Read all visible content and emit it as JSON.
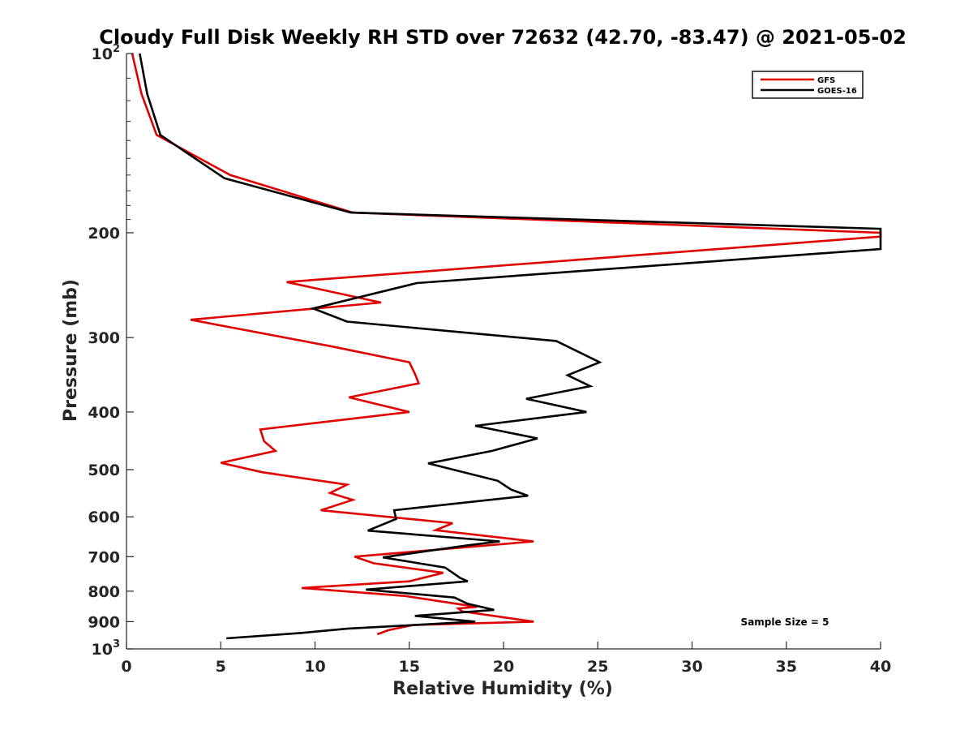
{
  "chart_data": {
    "type": "line",
    "title": "Cloudy Full Disk Weekly RH STD over 72632 (42.70, -83.47) @ 2021-05-02",
    "xlabel": "Relative Humidity (%)",
    "ylabel": "Pressure (mb)",
    "xlim": [
      0,
      40
    ],
    "ylim": [
      100,
      1000
    ],
    "y_scale": "log",
    "y_reversed": true,
    "grid": false,
    "legend_position": "top-right",
    "x_ticks": [
      0,
      5,
      10,
      15,
      20,
      25,
      30,
      35,
      40
    ],
    "x_tick_labels": [
      "0",
      "5",
      "10",
      "15",
      "20",
      "25",
      "30",
      "35",
      "40"
    ],
    "y_ticks": [
      {
        "value": 100,
        "base": "10",
        "sup": "2"
      },
      {
        "value": 200,
        "base": "200",
        "sup": ""
      },
      {
        "value": 300,
        "base": "300",
        "sup": ""
      },
      {
        "value": 400,
        "base": "400",
        "sup": ""
      },
      {
        "value": 500,
        "base": "500",
        "sup": ""
      },
      {
        "value": 600,
        "base": "600",
        "sup": ""
      },
      {
        "value": 700,
        "base": "700",
        "sup": ""
      },
      {
        "value": 800,
        "base": "800",
        "sup": ""
      },
      {
        "value": 900,
        "base": "900",
        "sup": ""
      },
      {
        "value": 1000,
        "base": "10",
        "sup": "3"
      }
    ],
    "annotation": "Sample Size = 5",
    "series": [
      {
        "name": "GFS",
        "color": "#e00000",
        "points": [
          [
            0.3,
            100
          ],
          [
            0.8,
            117
          ],
          [
            1.6,
            137
          ],
          [
            5.5,
            160
          ],
          [
            12,
            185
          ],
          [
            40,
            200
          ],
          [
            40,
            203
          ],
          [
            8.5,
            242
          ],
          [
            13.5,
            262
          ],
          [
            3.4,
            280
          ],
          [
            10.8,
            310
          ],
          [
            15.0,
            330
          ],
          [
            15.3,
            345
          ],
          [
            15.5,
            358
          ],
          [
            11.8,
            378
          ],
          [
            15.0,
            400
          ],
          [
            7.1,
            428
          ],
          [
            7.3,
            448
          ],
          [
            7.9,
            465
          ],
          [
            5.0,
            487
          ],
          [
            7.2,
            505
          ],
          [
            11.7,
            530
          ],
          [
            10.8,
            547
          ],
          [
            12.0,
            562
          ],
          [
            10.3,
            585
          ],
          [
            17.3,
            615
          ],
          [
            16.4,
            632
          ],
          [
            21.6,
            660
          ],
          [
            12.1,
            700
          ],
          [
            13.1,
            718
          ],
          [
            16.8,
            745
          ],
          [
            15.0,
            770
          ],
          [
            9.3,
            790
          ],
          [
            14.8,
            815
          ],
          [
            17.3,
            838
          ],
          [
            18.6,
            850
          ],
          [
            17.6,
            855
          ],
          [
            17.8,
            865
          ],
          [
            21.6,
            900
          ],
          [
            15.2,
            912
          ],
          [
            13.9,
            930
          ],
          [
            13.3,
            945
          ]
        ]
      },
      {
        "name": "GOES-16",
        "color": "#000000",
        "points": [
          [
            0.7,
            100
          ],
          [
            1.1,
            117
          ],
          [
            1.8,
            137
          ],
          [
            5.2,
            162
          ],
          [
            11.9,
            185
          ],
          [
            40,
            197
          ],
          [
            40,
            213
          ],
          [
            15.4,
            243
          ],
          [
            9.9,
            268
          ],
          [
            11.7,
            282
          ],
          [
            22.8,
            304
          ],
          [
            25.1,
            330
          ],
          [
            23.4,
            347
          ],
          [
            24.6,
            362
          ],
          [
            21.2,
            380
          ],
          [
            24.4,
            400
          ],
          [
            18.5,
            422
          ],
          [
            21.8,
            443
          ],
          [
            19.4,
            465
          ],
          [
            16.0,
            488
          ],
          [
            19.7,
            522
          ],
          [
            20.4,
            540
          ],
          [
            21.3,
            553
          ],
          [
            14.2,
            585
          ],
          [
            14.3,
            605
          ],
          [
            12.8,
            633
          ],
          [
            19.8,
            660
          ],
          [
            18.1,
            670
          ],
          [
            13.6,
            702
          ],
          [
            16.9,
            730
          ],
          [
            17.7,
            760
          ],
          [
            18.1,
            770
          ],
          [
            12.7,
            795
          ],
          [
            17.4,
            820
          ],
          [
            18.1,
            840
          ],
          [
            19.5,
            860
          ],
          [
            15.3,
            880
          ],
          [
            18.5,
            900
          ],
          [
            11.7,
            925
          ],
          [
            9.3,
            940
          ],
          [
            5.3,
            960
          ]
        ]
      }
    ]
  }
}
